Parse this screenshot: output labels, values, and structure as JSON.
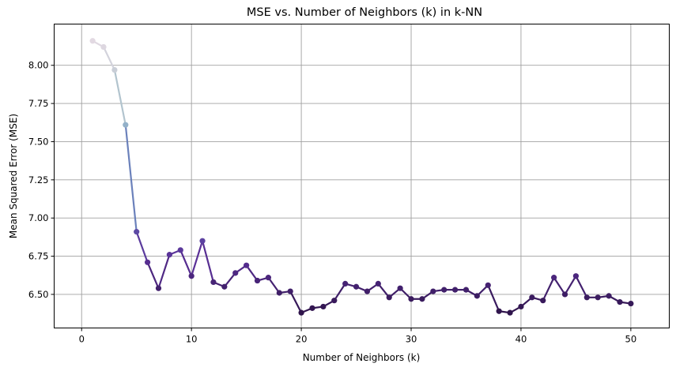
{
  "chart_data": {
    "type": "line",
    "title": "MSE vs. Number of Neighbors (k) in k-NN",
    "xlabel": "Number of Neighbors (k)",
    "ylabel": "Mean Squared Error (MSE)",
    "xlim": [
      -2.5,
      53.5
    ],
    "ylim": [
      6.28,
      8.27
    ],
    "xticks": [
      0,
      10,
      20,
      30,
      40,
      50
    ],
    "yticks": [
      6.5,
      6.75,
      7.0,
      7.25,
      7.5,
      7.75,
      8.0
    ],
    "ytick_labels": [
      "6.50",
      "6.75",
      "7.00",
      "7.25",
      "7.50",
      "7.75",
      "8.00"
    ],
    "grid": true,
    "colormap": "twilight",
    "x": [
      1,
      2,
      3,
      4,
      5,
      6,
      7,
      8,
      9,
      10,
      11,
      12,
      13,
      14,
      15,
      16,
      17,
      18,
      19,
      20,
      21,
      22,
      23,
      24,
      25,
      26,
      27,
      28,
      29,
      30,
      31,
      32,
      33,
      34,
      35,
      36,
      37,
      38,
      39,
      40,
      41,
      42,
      43,
      44,
      45,
      46,
      47,
      48,
      49,
      50
    ],
    "y": [
      8.16,
      8.12,
      7.97,
      7.61,
      6.91,
      6.71,
      6.54,
      6.76,
      6.79,
      6.62,
      6.85,
      6.58,
      6.55,
      6.64,
      6.69,
      6.59,
      6.61,
      6.51,
      6.52,
      6.38,
      6.41,
      6.42,
      6.46,
      6.57,
      6.55,
      6.52,
      6.57,
      6.48,
      6.54,
      6.47,
      6.47,
      6.52,
      6.53,
      6.53,
      6.53,
      6.49,
      6.56,
      6.39,
      6.38,
      6.42,
      6.48,
      6.46,
      6.61,
      6.5,
      6.62,
      6.48,
      6.48,
      6.49,
      6.45,
      6.44
    ]
  }
}
